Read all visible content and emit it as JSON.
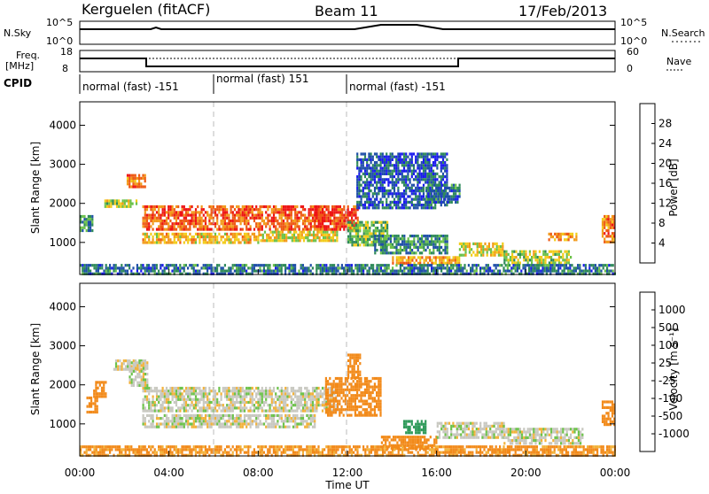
{
  "header": {
    "station": "Kerguelen (fitACF)",
    "beam": "Beam 11",
    "date": "17/Feb/2013"
  },
  "status_panels": {
    "nsky_label": "N.Sky",
    "nsky_ticks": [
      "10^5",
      "10^0"
    ],
    "nsearch_label": "N.Search",
    "nsearch_ticks": [
      "10^5",
      "10^0"
    ],
    "freq_label_line1": "Freq.",
    "freq_label_line2": "[MHz]",
    "freq_ticks": [
      "18",
      "8"
    ],
    "nave_label": "Nave",
    "nave_ticks": [
      "60",
      "0"
    ],
    "cpid_label": "CPID",
    "cpid_segments": [
      {
        "label": "normal (fast) -151",
        "start_h": 0,
        "end_h": 6
      },
      {
        "label": "normal (fast) 151",
        "start_h": 6,
        "end_h": 12
      },
      {
        "label": "normal (fast) -151",
        "start_h": 12,
        "end_h": 24
      }
    ]
  },
  "axes": {
    "xlabel": "Time UT",
    "ylabel": "Slant Range [km]",
    "x_ticks": [
      "00:00",
      "04:00",
      "08:00",
      "12:00",
      "16:00",
      "20:00",
      "00:00"
    ],
    "y_ticks": [
      "1000",
      "2000",
      "3000",
      "4000"
    ]
  },
  "colorbars": {
    "power": {
      "label": "Power [dB]",
      "ticks": [
        "4",
        "8",
        "12",
        "16",
        "20",
        "24",
        "28"
      ],
      "colors": [
        "#1a1aee",
        "#1f4fa8",
        "#2f8a5a",
        "#6cc24a",
        "#f2cc1a",
        "#f29a1a",
        "#ee5a14",
        "#ee1414"
      ]
    },
    "velocity": {
      "label": "Velocity [m s⁻¹]",
      "ticks": [
        "1000",
        "500",
        "100",
        "25",
        "-25",
        "-100",
        "-500",
        "-1000"
      ],
      "colors": [
        "#1a3cc8",
        "#2f7a7a",
        "#2f9a5a",
        "#6cc24a",
        "#c8c8c0",
        "#f2b23a",
        "#f28a1a",
        "#ee5a14",
        "#ee1414"
      ]
    }
  },
  "chart_data": [
    {
      "type": "heatmap",
      "title": "",
      "panel": "power",
      "x_range_h": [
        0,
        24
      ],
      "ylim": [
        180,
        4600
      ],
      "ylabel": "Slant Range [km]",
      "xlabel": "",
      "colorbar_label": "Power [dB]",
      "value_range": [
        0,
        30
      ],
      "bands": [
        {
          "t0": 0.0,
          "t1": 0.6,
          "r0": 1300,
          "r1": 1700,
          "v": 10
        },
        {
          "t0": 1.1,
          "t1": 2.5,
          "r0": 1900,
          "r1": 2100,
          "v": 16
        },
        {
          "t0": 2.1,
          "t1": 2.9,
          "r0": 2400,
          "r1": 2750,
          "v": 24
        },
        {
          "t0": 2.8,
          "t1": 11.0,
          "r0": 1350,
          "r1": 1950,
          "v": 26
        },
        {
          "t0": 2.8,
          "t1": 8.0,
          "r0": 1000,
          "r1": 1250,
          "v": 20
        },
        {
          "t0": 8.0,
          "t1": 11.5,
          "r0": 1050,
          "r1": 1300,
          "v": 18
        },
        {
          "t0": 10.5,
          "t1": 12.5,
          "r0": 1300,
          "r1": 1950,
          "v": 28
        },
        {
          "t0": 12.0,
          "t1": 13.8,
          "r0": 950,
          "r1": 1550,
          "v": 14
        },
        {
          "t0": 13.2,
          "t1": 16.5,
          "r0": 700,
          "r1": 1200,
          "v": 10
        },
        {
          "t0": 14.0,
          "t1": 17.0,
          "r0": 450,
          "r1": 650,
          "v": 22
        },
        {
          "t0": 17.0,
          "t1": 19.0,
          "r0": 700,
          "r1": 1000,
          "v": 18
        },
        {
          "t0": 19.0,
          "t1": 22.0,
          "r0": 500,
          "r1": 800,
          "v": 16
        },
        {
          "t0": 21.0,
          "t1": 22.3,
          "r0": 1050,
          "r1": 1250,
          "v": 22
        },
        {
          "t0": 23.4,
          "t1": 24.0,
          "r0": 1000,
          "r1": 1700,
          "v": 24
        },
        {
          "t0": 12.4,
          "t1": 16.5,
          "r0": 1900,
          "r1": 3300,
          "v": 6
        },
        {
          "t0": 15.5,
          "t1": 17.0,
          "r0": 2000,
          "r1": 2500,
          "v": 8
        },
        {
          "t0": 0.0,
          "t1": 24.0,
          "r0": 200,
          "r1": 450,
          "v": 8
        }
      ]
    },
    {
      "type": "heatmap",
      "title": "",
      "panel": "velocity",
      "x_range_h": [
        0,
        24
      ],
      "ylim": [
        180,
        4600
      ],
      "ylabel": "Slant Range [km]",
      "xlabel": "Time UT",
      "colorbar_label": "Velocity [m s⁻¹]",
      "value_range": [
        -1000,
        1000
      ],
      "bands": [
        {
          "t0": 0.3,
          "t1": 0.8,
          "r0": 1300,
          "r1": 1700,
          "v": -300
        },
        {
          "t0": 0.6,
          "t1": 1.2,
          "r0": 1700,
          "r1": 2100,
          "v": -150
        },
        {
          "t0": 1.5,
          "t1": 2.9,
          "r0": 2400,
          "r1": 2650,
          "v": 0
        },
        {
          "t0": 2.8,
          "t1": 11.5,
          "r0": 1350,
          "r1": 1950,
          "v": 0
        },
        {
          "t0": 2.8,
          "t1": 10.5,
          "r0": 950,
          "r1": 1250,
          "v": 0
        },
        {
          "t0": 2.2,
          "t1": 3.0,
          "r0": 1950,
          "r1": 2600,
          "v": 0
        },
        {
          "t0": 11.0,
          "t1": 13.5,
          "r0": 1200,
          "r1": 2200,
          "v": -400
        },
        {
          "t0": 12.0,
          "t1": 12.6,
          "r0": 2200,
          "r1": 2800,
          "v": -200
        },
        {
          "t0": 13.5,
          "t1": 16.0,
          "r0": 400,
          "r1": 700,
          "v": -400
        },
        {
          "t0": 14.5,
          "t1": 15.5,
          "r0": 800,
          "r1": 1100,
          "v": 150
        },
        {
          "t0": 16.0,
          "t1": 19.0,
          "r0": 650,
          "r1": 1050,
          "v": 0
        },
        {
          "t0": 19.0,
          "t1": 22.5,
          "r0": 500,
          "r1": 900,
          "v": 0
        },
        {
          "t0": 23.4,
          "t1": 24.0,
          "r0": 1000,
          "r1": 1600,
          "v": -400
        },
        {
          "t0": 0.0,
          "t1": 24.0,
          "r0": 200,
          "r1": 450,
          "v": -120
        }
      ]
    }
  ]
}
